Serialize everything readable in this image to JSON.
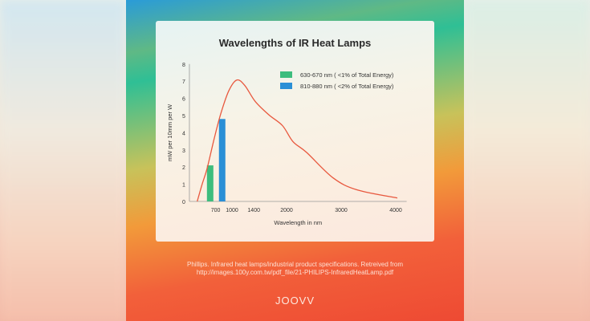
{
  "chart_data": {
    "type": "line",
    "title": "Wavelengths of IR Heat Lamps",
    "xlabel": "Wavelength in nm",
    "ylabel": "mW per 10mm per W",
    "xticks": [
      700,
      1000,
      1400,
      2000,
      3000,
      4000
    ],
    "yticks": [
      0,
      1,
      2,
      3,
      4,
      5,
      6,
      7,
      8
    ],
    "ylim": [
      0,
      8
    ],
    "xlim": [
      220,
      4200
    ],
    "grid": false,
    "legend_placement": "top-right",
    "curve": {
      "color": "#e8583e",
      "x": [
        363,
        451,
        544,
        672,
        794,
        941,
        1088,
        1235,
        1426,
        1676,
        1926,
        2118,
        2368,
        2853,
        3294,
        4029
      ],
      "y": [
        0,
        0.98,
        1.92,
        3.63,
        5.1,
        6.44,
        7.07,
        6.75,
        5.82,
        5.04,
        4.41,
        3.48,
        2.85,
        1.37,
        0.67,
        0.2
      ]
    },
    "bars": [
      {
        "name": "630-670 nm ( <1% of Total Energy)",
        "x": 600,
        "value": 2.1,
        "color": "#3dbd7d"
      },
      {
        "name": "810-880 nm ( <2% of Total Energy)",
        "x": 820,
        "value": 4.8,
        "color": "#2a8fd6"
      }
    ]
  },
  "footer": {
    "source_line1": "Phillips. Infrared heat lamps/industrial product specifications. Retreived from",
    "source_line2": "http://images.100y.com.tw/pdf_file/21-PHILIPS-InfraredHeatLamp.pdf",
    "logo": "JOOVV"
  }
}
